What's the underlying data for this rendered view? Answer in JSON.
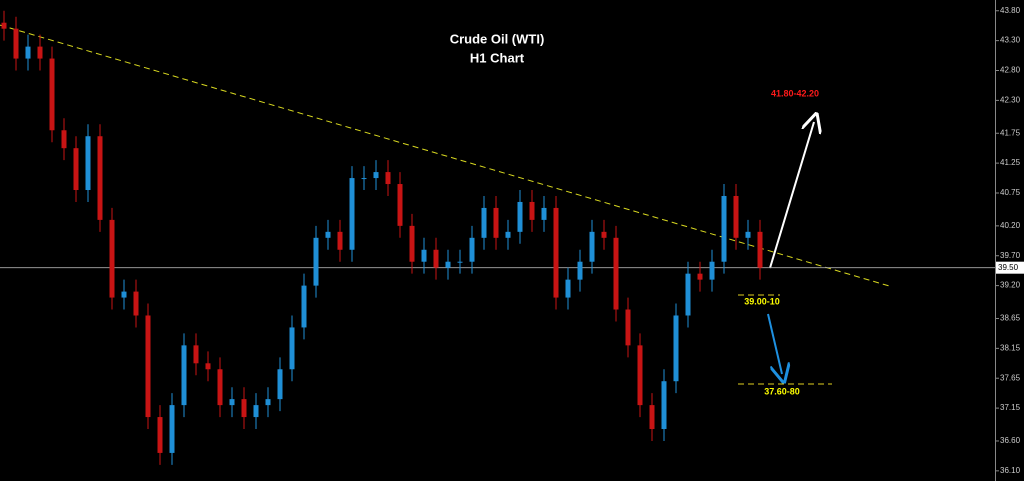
{
  "chart_data": {
    "type": "candlestick",
    "title": "Crude Oil (WTI)",
    "subtitle": "H1 Chart",
    "up_color": "#1f8fd6",
    "down_color": "#c81414",
    "ylim": [
      35.93,
      43.98
    ],
    "yticks": [
      {
        "value": 43.8,
        "label": "43.80"
      },
      {
        "value": 43.3,
        "label": "43.30"
      },
      {
        "value": 42.8,
        "label": "42.80"
      },
      {
        "value": 42.3,
        "label": "42.30"
      },
      {
        "value": 41.75,
        "label": "41.75"
      },
      {
        "value": 41.25,
        "label": "41.25"
      },
      {
        "value": 40.75,
        "label": "40.75"
      },
      {
        "value": 40.2,
        "label": "40.20"
      },
      {
        "value": 39.7,
        "label": "39.70"
      },
      {
        "value": 39.2,
        "label": "39.20"
      },
      {
        "value": 38.65,
        "label": "38.65"
      },
      {
        "value": 38.15,
        "label": "38.15"
      },
      {
        "value": 37.65,
        "label": "37.65"
      },
      {
        "value": 37.15,
        "label": "37.15"
      },
      {
        "value": 36.6,
        "label": "36.60"
      },
      {
        "value": 36.1,
        "label": "36.10"
      }
    ],
    "last_price": {
      "value": 39.5,
      "label": "39.50"
    },
    "trendline": {
      "start": 43.56,
      "end": 39.19,
      "color": "#d8d820"
    },
    "annotations": [
      {
        "text": "41.80-42.20",
        "color": "#ff1a1a"
      },
      {
        "text": "39.00-10",
        "color": "#ffff00"
      },
      {
        "text": "37.60-80",
        "color": "#ffff00"
      }
    ],
    "open": [
      43.6,
      43.5,
      43.0,
      43.2,
      43.0,
      41.8,
      41.5,
      40.8,
      41.7,
      40.3,
      39.0,
      39.1,
      38.7,
      37.0,
      36.4,
      37.2,
      38.2,
      37.9,
      37.8,
      37.2,
      37.3,
      37.0,
      37.2,
      37.3,
      37.8,
      38.5,
      39.2,
      40.0,
      40.1,
      39.8,
      41.0,
      41.0,
      41.1,
      40.9,
      40.2,
      39.6,
      39.8,
      39.5,
      39.6,
      39.6,
      40.0,
      40.5,
      40.0,
      40.1,
      40.6,
      40.3,
      40.5,
      39.0,
      39.3,
      39.6,
      40.1,
      40.0,
      38.8,
      38.2,
      37.2,
      36.8,
      37.6,
      38.7,
      39.4,
      39.3,
      39.6,
      40.7,
      40.0,
      40.1
    ],
    "high": [
      43.8,
      43.7,
      43.4,
      43.4,
      43.2,
      42.0,
      41.7,
      41.9,
      41.9,
      40.5,
      39.3,
      39.3,
      38.9,
      37.2,
      37.4,
      38.4,
      38.4,
      38.1,
      38.0,
      37.5,
      37.5,
      37.4,
      37.5,
      38.0,
      38.7,
      39.4,
      40.2,
      40.3,
      40.3,
      41.2,
      41.2,
      41.3,
      41.3,
      41.1,
      40.4,
      40.0,
      40.0,
      39.8,
      39.8,
      40.2,
      40.7,
      40.7,
      40.3,
      40.8,
      40.8,
      40.7,
      40.7,
      39.5,
      39.8,
      40.3,
      40.3,
      40.2,
      39.0,
      38.4,
      37.4,
      37.8,
      38.9,
      39.6,
      39.6,
      39.8,
      40.9,
      40.9,
      40.3,
      40.3
    ],
    "low": [
      43.3,
      42.8,
      42.8,
      42.8,
      41.6,
      41.3,
      40.6,
      40.6,
      40.1,
      38.8,
      38.8,
      38.5,
      36.8,
      36.2,
      36.2,
      37.0,
      37.7,
      37.6,
      37.0,
      37.0,
      36.8,
      36.8,
      37.0,
      37.1,
      37.6,
      38.3,
      39.0,
      39.8,
      39.6,
      39.6,
      40.8,
      40.8,
      40.7,
      40.0,
      39.4,
      39.4,
      39.3,
      39.3,
      39.4,
      39.4,
      39.8,
      39.8,
      39.8,
      39.9,
      40.1,
      40.1,
      38.8,
      38.8,
      39.1,
      39.4,
      39.8,
      38.6,
      38.0,
      37.0,
      36.6,
      36.6,
      37.4,
      38.5,
      39.1,
      39.1,
      39.4,
      39.8,
      39.8,
      39.3
    ],
    "close": [
      43.5,
      43.0,
      43.2,
      43.0,
      41.8,
      41.5,
      40.8,
      41.7,
      40.3,
      39.0,
      39.1,
      38.7,
      37.0,
      36.4,
      37.2,
      38.2,
      37.9,
      37.8,
      37.2,
      37.3,
      37.0,
      37.2,
      37.3,
      37.8,
      38.5,
      39.2,
      40.0,
      40.1,
      39.8,
      41.0,
      41.0,
      41.1,
      40.9,
      40.2,
      39.6,
      39.8,
      39.5,
      39.6,
      39.6,
      40.0,
      40.5,
      40.0,
      40.1,
      40.6,
      40.3,
      40.5,
      39.0,
      39.3,
      39.6,
      40.1,
      40.0,
      38.8,
      38.2,
      37.2,
      36.8,
      37.6,
      38.7,
      39.4,
      39.3,
      39.6,
      40.7,
      40.0,
      40.1,
      39.5
    ]
  }
}
